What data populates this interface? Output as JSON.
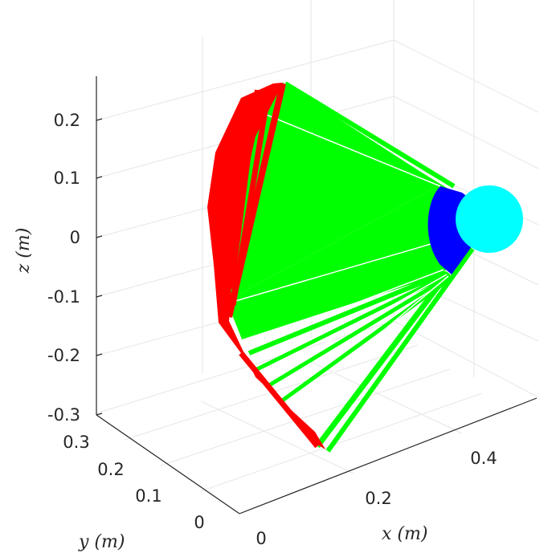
{
  "chart_data": {
    "type": "line",
    "projection": "3d",
    "title": "",
    "xlabel": "x (m)",
    "ylabel": "y (m)",
    "zlabel": "z (m)",
    "x_ticks": [
      "0",
      "0.2",
      "0.4"
    ],
    "y_ticks": [
      "0",
      "0.1",
      "0.2",
      "0.3"
    ],
    "z_ticks": [
      "-0.3",
      "-0.2",
      "-0.1",
      "0",
      "0.1",
      "0.2"
    ],
    "zlim": [
      -0.3,
      0.25
    ],
    "grid": true,
    "legend": "none",
    "series": [
      {
        "color": "#ff0000",
        "description_key": "red-link"
      },
      {
        "color": "#00ff00",
        "description_key": "green-link"
      },
      {
        "color": "#0000ff",
        "description_key": "blue-link"
      },
      {
        "color": "#00ffff",
        "description_key": "cyan-sphere"
      }
    ],
    "links_green": [
      {
        "from": [
          0.03,
          0.21,
          0.19
        ],
        "to": [
          0.37,
          0.0,
          0.05
        ]
      },
      {
        "from": [
          0.01,
          0.23,
          0.2
        ],
        "to": [
          0.37,
          0.0,
          0.04
        ]
      },
      {
        "from": [
          -0.03,
          0.25,
          0.1
        ],
        "to": [
          0.37,
          0.0,
          0.02
        ]
      },
      {
        "from": [
          -0.06,
          0.27,
          -0.1
        ],
        "to": [
          0.37,
          0.0,
          -0.02
        ]
      },
      {
        "from": [
          -0.02,
          0.22,
          -0.17
        ],
        "to": [
          0.38,
          0.01,
          -0.04
        ]
      },
      {
        "from": [
          0.04,
          0.15,
          -0.24
        ],
        "to": [
          0.4,
          0.03,
          -0.06
        ]
      },
      {
        "from": [
          0.1,
          0.07,
          -0.33
        ],
        "to": [
          0.42,
          0.05,
          -0.07
        ]
      }
    ]
  }
}
